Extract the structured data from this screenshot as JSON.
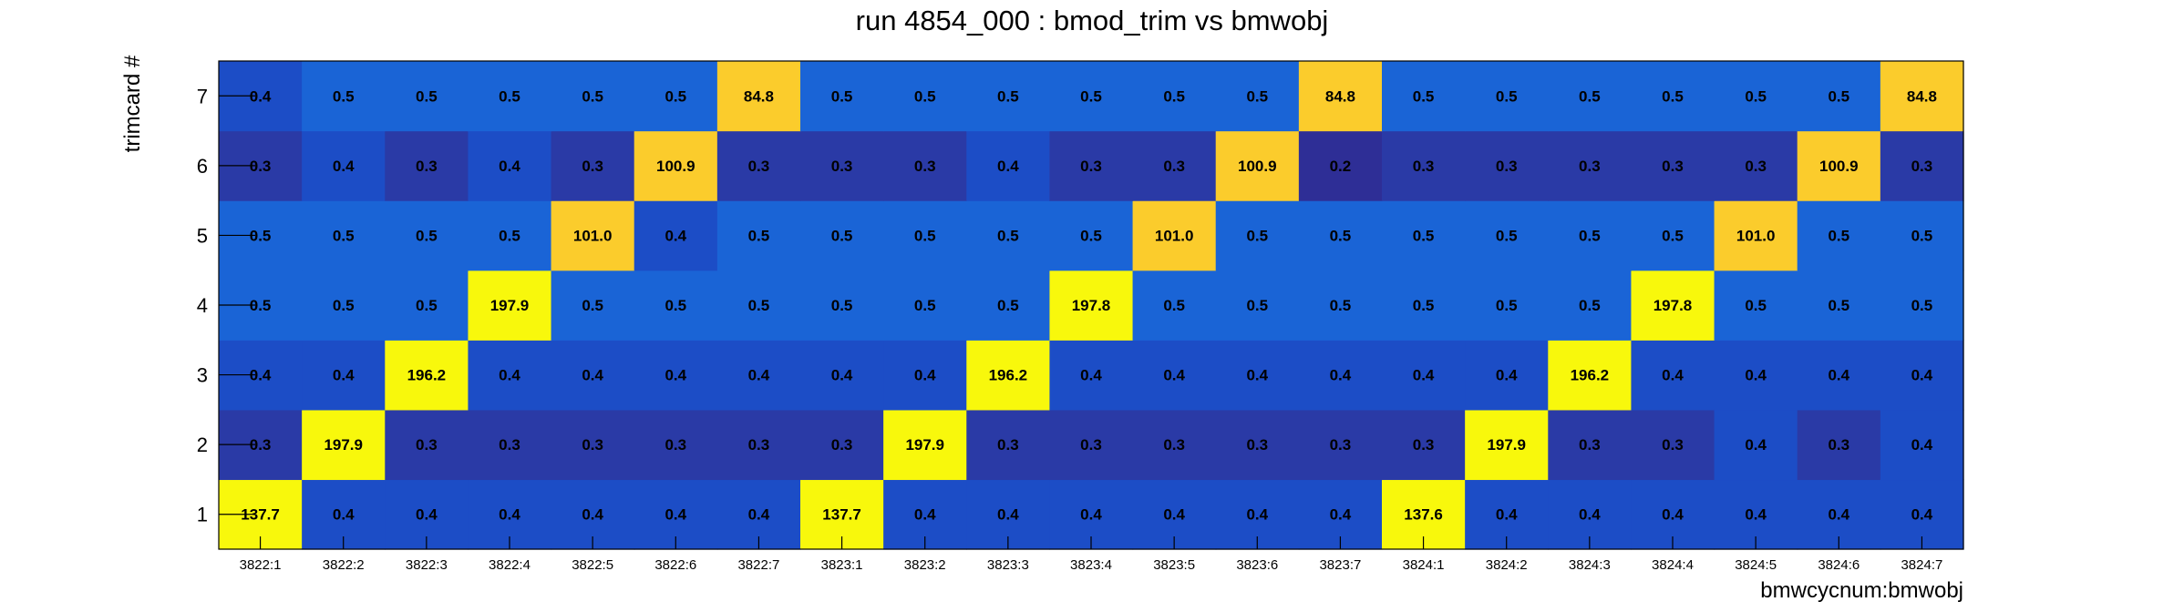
{
  "chart_data": {
    "type": "heatmap",
    "title": "run 4854_000 : bmod_trim vs bmwobj",
    "xlabel": "bmwcycnum:bmwobj",
    "ylabel": "trimcard #",
    "x_categories": [
      "3822:1",
      "3822:2",
      "3822:3",
      "3822:4",
      "3822:5",
      "3822:6",
      "3822:7",
      "3823:1",
      "3823:2",
      "3823:3",
      "3823:4",
      "3823:5",
      "3823:6",
      "3823:7",
      "3824:1",
      "3824:2",
      "3824:3",
      "3824:4",
      "3824:5",
      "3824:6",
      "3824:7"
    ],
    "y_categories": [
      "1",
      "2",
      "3",
      "4",
      "5",
      "6",
      "7"
    ],
    "values": [
      [
        "137.7",
        "0.4",
        "0.4",
        "0.4",
        "0.4",
        "0.4",
        "0.4",
        "137.7",
        "0.4",
        "0.4",
        "0.4",
        "0.4",
        "0.4",
        "0.4",
        "137.6",
        "0.4",
        "0.4",
        "0.4",
        "0.4",
        "0.4",
        "0.4"
      ],
      [
        "0.3",
        "197.9",
        "0.3",
        "0.3",
        "0.3",
        "0.3",
        "0.3",
        "0.3",
        "197.9",
        "0.3",
        "0.3",
        "0.3",
        "0.3",
        "0.3",
        "0.3",
        "197.9",
        "0.3",
        "0.3",
        "0.4",
        "0.3",
        "0.4"
      ],
      [
        "0.4",
        "0.4",
        "196.2",
        "0.4",
        "0.4",
        "0.4",
        "0.4",
        "0.4",
        "0.4",
        "196.2",
        "0.4",
        "0.4",
        "0.4",
        "0.4",
        "0.4",
        "0.4",
        "196.2",
        "0.4",
        "0.4",
        "0.4",
        "0.4"
      ],
      [
        "0.5",
        "0.5",
        "0.5",
        "197.9",
        "0.5",
        "0.5",
        "0.5",
        "0.5",
        "0.5",
        "0.5",
        "197.8",
        "0.5",
        "0.5",
        "0.5",
        "0.5",
        "0.5",
        "0.5",
        "197.8",
        "0.5",
        "0.5",
        "0.5"
      ],
      [
        "0.5",
        "0.5",
        "0.5",
        "0.5",
        "101.0",
        "0.4",
        "0.5",
        "0.5",
        "0.5",
        "0.5",
        "0.5",
        "101.0",
        "0.5",
        "0.5",
        "0.5",
        "0.5",
        "0.5",
        "0.5",
        "101.0",
        "0.5",
        "0.5"
      ],
      [
        "0.3",
        "0.4",
        "0.3",
        "0.4",
        "0.3",
        "100.9",
        "0.3",
        "0.3",
        "0.3",
        "0.4",
        "0.3",
        "0.3",
        "100.9",
        "0.2",
        "0.3",
        "0.3",
        "0.3",
        "0.3",
        "0.3",
        "100.9",
        "0.3"
      ],
      [
        "0.4",
        "0.5",
        "0.5",
        "0.5",
        "0.5",
        "0.5",
        "84.8",
        "0.5",
        "0.5",
        "0.5",
        "0.5",
        "0.5",
        "0.5",
        "84.8",
        "0.5",
        "0.5",
        "0.5",
        "0.5",
        "0.5",
        "0.5",
        "84.8"
      ]
    ],
    "colors": {
      "large": "#f8f80c",
      "mid": "#fbcc2c",
      "v0.5": "#1a64d6",
      "v0.4": "#1c4dc6",
      "v0.3": "#2a3aa6",
      "v0.2": "#2e2e96",
      "frame": "#000000"
    }
  }
}
